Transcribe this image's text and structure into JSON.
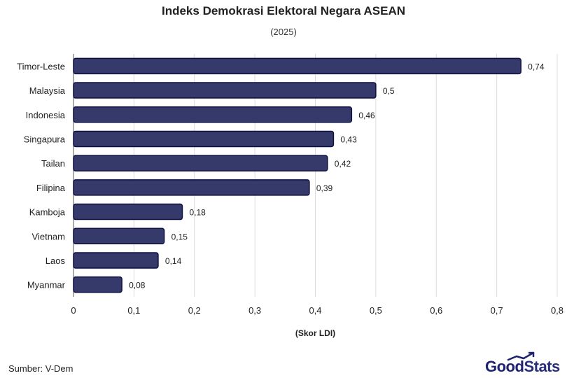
{
  "header": {
    "title": "Indeks Demokrasi Elektoral Negara ASEAN",
    "subtitle": "(2025)"
  },
  "footer": {
    "source": "Sumber: V-Dem",
    "brand_part1": "Good",
    "brand_part2": "Stats"
  },
  "colors": {
    "bar": "#353a6b",
    "bar_stroke": "#0d1040",
    "grid": "#dcdcdc",
    "text": "#222222"
  },
  "chart_data": {
    "type": "bar",
    "orientation": "horizontal",
    "categories": [
      "Timor-Leste",
      "Malaysia",
      "Indonesia",
      "Singapura",
      "Tailan",
      "Filipina",
      "Kamboja",
      "Vietnam",
      "Laos",
      "Myanmar"
    ],
    "values": [
      0.74,
      0.5,
      0.46,
      0.43,
      0.42,
      0.39,
      0.18,
      0.15,
      0.14,
      0.08
    ],
    "value_labels": [
      "0,74",
      "0,5",
      "0,46",
      "0,43",
      "0,42",
      "0,39",
      "0,18",
      "0,15",
      "0,14",
      "0,08"
    ],
    "title": "Indeks Demokrasi Elektoral Negara ASEAN",
    "subtitle": "(2025)",
    "xlabel": "(Skor LDI)",
    "ylabel": "",
    "xlim": [
      0,
      0.8
    ],
    "xticks": [
      0,
      0.1,
      0.2,
      0.3,
      0.4,
      0.5,
      0.6,
      0.7,
      0.8
    ],
    "xtick_labels": [
      "0",
      "0,1",
      "0,2",
      "0,3",
      "0,4",
      "0,5",
      "0,6",
      "0,7",
      "0,8"
    ],
    "grid": true,
    "legend": "none"
  }
}
